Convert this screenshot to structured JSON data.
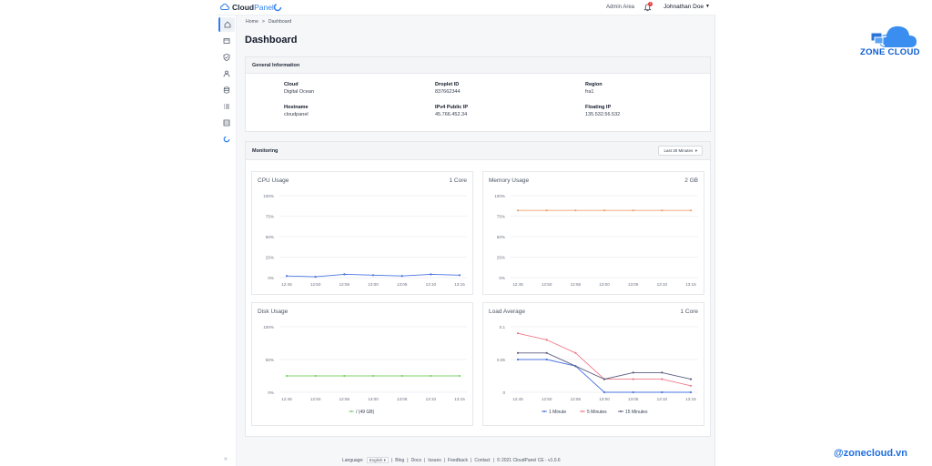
{
  "brand": {
    "part1": "Cloud",
    "part2": "Panel"
  },
  "header": {
    "admin_area": "Admin Area",
    "notifications": "1",
    "user": "Johnathan Doe"
  },
  "breadcrumb": {
    "home": "Home",
    "sep": ">",
    "current": "Dashboard"
  },
  "page_title": "Dashboard",
  "general": {
    "title": "General Information",
    "fields": [
      {
        "label": "Cloud",
        "value": "Digital Ocean"
      },
      {
        "label": "Droplet ID",
        "value": "837662344"
      },
      {
        "label": "Region",
        "value": "fra1"
      },
      {
        "label": "Hostname",
        "value": "cloudpanel"
      },
      {
        "label": "IPv4 Public IP",
        "value": "45.766.452.34"
      },
      {
        "label": "Floating IP",
        "value": "135.532.56.532"
      }
    ]
  },
  "monitoring": {
    "title": "Monitoring",
    "range": "Last 30 Minutes"
  },
  "chart_data": [
    {
      "type": "line",
      "title": "CPU Usage",
      "right_label": "1 Core",
      "x": [
        "12:45",
        "12:50",
        "12:55",
        "13:00",
        "13:05",
        "13:10",
        "13:15"
      ],
      "y_ticks": [
        "100%",
        "75%",
        "50%",
        "25%",
        "0%"
      ],
      "ylim": [
        0,
        100
      ],
      "series": [
        {
          "name": "CPU",
          "color": "#4a74e0",
          "values": [
            2,
            1,
            4,
            3,
            2,
            4,
            3
          ]
        }
      ]
    },
    {
      "type": "line",
      "title": "Memory Usage",
      "right_label": "2 GB",
      "x": [
        "12:45",
        "12:50",
        "12:55",
        "13:00",
        "13:05",
        "13:10",
        "13:15"
      ],
      "y_ticks": [
        "100%",
        "75%",
        "50%",
        "25%",
        "0%"
      ],
      "ylim": [
        0,
        100
      ],
      "series": [
        {
          "name": "Memory",
          "color": "#f0a070",
          "values": [
            82,
            82,
            82,
            82,
            82,
            82,
            82
          ]
        }
      ]
    },
    {
      "type": "line",
      "title": "Disk Usage",
      "right_label": "",
      "x": [
        "12:45",
        "12:50",
        "12:55",
        "13:00",
        "13:05",
        "13:10",
        "13:15"
      ],
      "y_ticks": [
        "100%",
        "50%",
        "0%"
      ],
      "ylim": [
        0,
        100
      ],
      "legend": [
        "/ (49 GB)"
      ],
      "series": [
        {
          "name": "/ (49 GB)",
          "color": "#7ed36a",
          "values": [
            25,
            25,
            25,
            25,
            25,
            25,
            25
          ]
        }
      ]
    },
    {
      "type": "line",
      "title": "Load Average",
      "right_label": "1 Core",
      "x": [
        "12:45",
        "12:50",
        "12:55",
        "13:00",
        "13:05",
        "13:10",
        "13:15"
      ],
      "y_ticks": [
        "0.1",
        "0.05",
        "0"
      ],
      "ylim": [
        0,
        0.1
      ],
      "legend": [
        "1 Minute",
        "5 Minutes",
        "15 Minutes"
      ],
      "series": [
        {
          "name": "1 Minute",
          "color": "#4a74e0",
          "values": [
            0.05,
            0.05,
            0.04,
            0,
            0,
            0,
            0
          ]
        },
        {
          "name": "5 Minutes",
          "color": "#f07a8a",
          "values": [
            0.09,
            0.08,
            0.06,
            0.02,
            0.02,
            0.02,
            0.01
          ]
        },
        {
          "name": "15 Minutes",
          "color": "#5a5f80",
          "values": [
            0.06,
            0.06,
            0.04,
            0.02,
            0.03,
            0.03,
            0.02
          ]
        }
      ]
    }
  ],
  "footer": {
    "language_label": "Language:",
    "language": "English",
    "links": [
      "Blog",
      "Docs",
      "Issues",
      "Feedback",
      "Contact"
    ],
    "copyright": "© 2021 CloudPanel CE - v1.0.6"
  },
  "watermark": {
    "name": "ZONE CLOUD",
    "handle": "@zonecloud.vn"
  },
  "colors": {
    "accent": "#2f80ed",
    "zone": "#0a5cd0"
  }
}
